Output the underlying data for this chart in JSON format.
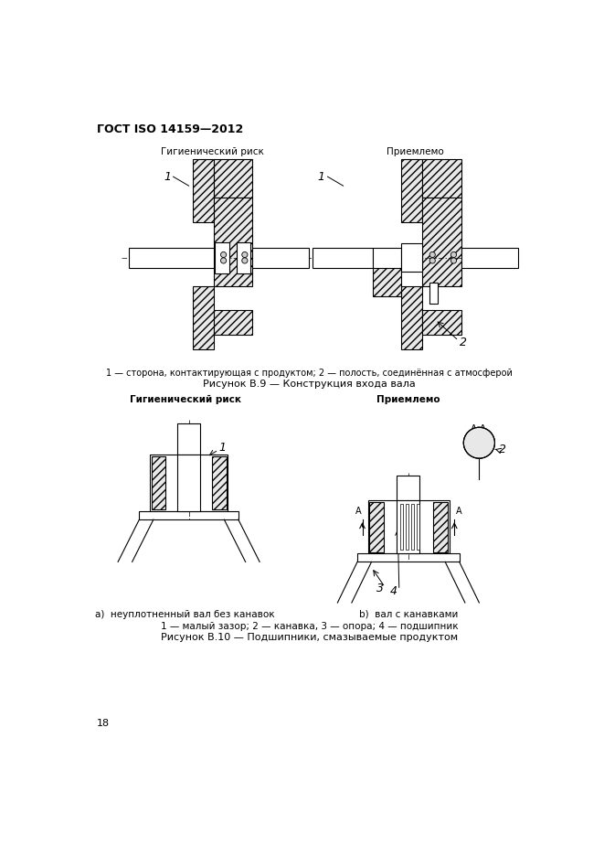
{
  "page_title": "ГОСТ ISO 14159—2012",
  "page_number": "18",
  "fig9_title": "Рисунок В.9 — Конструкция входа вала",
  "fig10_title": "Рисунок В.10 — Подшипники, смазываемые продуктом",
  "hygienic_risk": "Гигиенический риск",
  "acceptable": "Приемлемо",
  "fig9_caption": "1 — сторона, контактирующая с продуктом; 2 — полость, соединённая с атмосферой",
  "fig10_caption_a": "a)  неуплотненный вал без канавок",
  "fig10_caption_b": "b)  вал с канавками",
  "fig10_legend": "1 — малый зазор; 2 — канавка, 3 — опора; 4 — подшипник",
  "bg_color": "#ffffff",
  "line_color": "#000000"
}
